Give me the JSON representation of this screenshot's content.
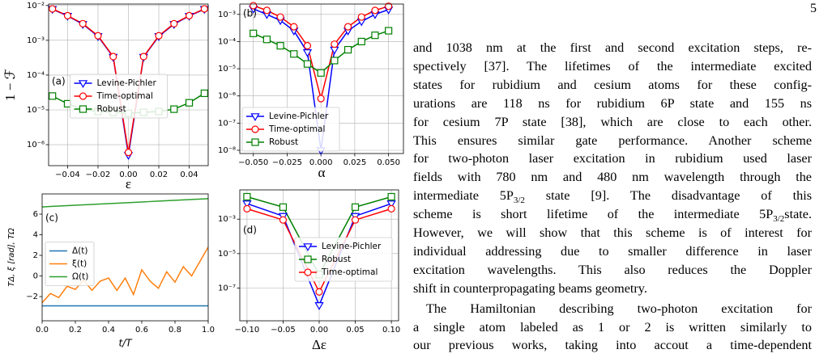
{
  "page_number": "5",
  "chart_data": [
    {
      "type": "line",
      "panel_label": "(a)",
      "xlabel": "ε",
      "ylabel": "1 − ℱ",
      "ylog": true,
      "grid": true,
      "legend": "center",
      "marker_size": 4,
      "x": [
        -0.05,
        -0.04,
        -0.03,
        -0.02,
        -0.01,
        0,
        0.01,
        0.02,
        0.03,
        0.04,
        0.05
      ],
      "xlim": [
        -0.0525,
        0.0525
      ],
      "xticks": [
        {
          "value": -0.04,
          "label": "−0.04"
        },
        {
          "value": -0.02,
          "label": "−0.02"
        },
        {
          "value": 0,
          "label": "0.00"
        },
        0.02,
        0.04
      ],
      "ylim": [
        2.5e-07,
        0.011
      ],
      "yticks": [
        {
          "value": 1e-06,
          "label": "10⁻⁶"
        },
        {
          "value": 1e-05,
          "label": "10⁻⁵"
        },
        {
          "value": 0.0001,
          "label": "10⁻⁴"
        },
        {
          "value": 0.001,
          "label": "10⁻³"
        },
        {
          "value": 0.01,
          "label": "10⁻²"
        }
      ],
      "series": [
        {
          "name": "Levine-Pichler",
          "color": "#0000ff",
          "marker": "v",
          "values": [
            0.0078,
            0.005,
            0.0029,
            0.0013,
            0.00033,
            5e-07,
            0.00033,
            0.0013,
            0.0029,
            0.005,
            0.0078
          ]
        },
        {
          "name": "Time-optimal",
          "color": "#ff0000",
          "marker": "o",
          "values": [
            0.008,
            0.0051,
            0.003,
            0.00135,
            0.00034,
            6e-07,
            0.00034,
            0.00135,
            0.003,
            0.0051,
            0.008
          ]
        },
        {
          "name": "Robust",
          "color": "#008000",
          "marker": "s",
          "values": [
            2.5e-05,
            1.5e-05,
            1.05e-05,
            9e-06,
            8.5e-06,
            8e-06,
            8.5e-06,
            9e-06,
            1.05e-05,
            1.6e-05,
            3e-05
          ]
        }
      ]
    },
    {
      "type": "line",
      "panel_label": "(b)",
      "xlabel": "α",
      "ylog": true,
      "grid": true,
      "legend": "lower left",
      "marker_size": 4,
      "x": [
        -0.05,
        -0.04,
        -0.03,
        -0.02,
        -0.01,
        0,
        0.01,
        0.02,
        0.03,
        0.04,
        0.05
      ],
      "xlim": [
        -0.06,
        0.061
      ],
      "xticks": [
        {
          "value": -0.05,
          "label": "−0.050"
        },
        {
          "value": -0.025,
          "label": "−0.025"
        },
        {
          "value": 0,
          "label": "0.000"
        },
        0.025,
        {
          "value": 0.05,
          "label": "0.050"
        }
      ],
      "ylim": [
        7.6e-09,
        0.0024
      ],
      "yticks": [
        {
          "value": 1e-08,
          "label": "10⁻⁸"
        },
        {
          "value": 1e-07,
          "label": "10⁻⁷"
        },
        {
          "value": 1e-06,
          "label": "10⁻⁶"
        },
        {
          "value": 1e-05,
          "label": "10⁻⁵"
        },
        {
          "value": 0.0001,
          "label": "10⁻⁴"
        },
        {
          "value": 0.001,
          "label": "10⁻³"
        }
      ],
      "series": [
        {
          "name": "Levine-Pichler",
          "color": "#0000ff",
          "marker": "v",
          "values": [
            0.0016,
            0.001,
            0.0006,
            0.00025,
            4e-05,
            1e-08,
            5e-05,
            0.00025,
            0.00055,
            0.001,
            0.0015
          ]
        },
        {
          "name": "Time-optimal",
          "color": "#ff0000",
          "marker": "o",
          "values": [
            0.0021,
            0.0014,
            0.0008,
            0.00035,
            7e-05,
            8e-07,
            8e-05,
            0.00035,
            0.0008,
            0.0014,
            0.002
          ]
        },
        {
          "name": "Robust",
          "color": "#008000",
          "marker": "s",
          "values": [
            0.0002,
            0.00012,
            7e-05,
            3.5e-05,
            1.5e-05,
            7e-06,
            2e-05,
            5e-05,
            0.0001,
            0.00017,
            0.00025
          ]
        }
      ]
    },
    {
      "type": "line",
      "panel_label": "(c)",
      "xlabel": "t/T",
      "ylabel": "TΔ, ξ [rad], TΩ",
      "ylog": false,
      "grid": false,
      "legend": "center left",
      "x": [
        0,
        0.05,
        0.1,
        0.15,
        0.2,
        0.25,
        0.3,
        0.35,
        0.4,
        0.45,
        0.5,
        0.55,
        0.6,
        0.65,
        0.7,
        0.75,
        0.8,
        0.85,
        0.9,
        0.95,
        1
      ],
      "xlim": [
        0,
        1
      ],
      "xticks": [
        {
          "value": 0,
          "label": "0.0"
        },
        0.2,
        0.4,
        0.6,
        0.8,
        {
          "value": 1,
          "label": "1.0"
        }
      ],
      "ylim": [
        -4.35,
        7.96
      ],
      "yticks": [
        {
          "value": -2,
          "label": "−2"
        },
        0,
        2,
        4,
        6
      ],
      "series": [
        {
          "name": "Δ(t)",
          "color": "#1f77b4",
          "values": [
            -2.9,
            -2.9,
            -2.9,
            -2.9,
            -2.9,
            -2.9,
            -2.9,
            -2.9,
            -2.9,
            -2.9,
            -2.9,
            -2.9,
            -2.9,
            -2.9,
            -2.9,
            -2.9,
            -2.9,
            -2.9,
            -2.9,
            -2.9,
            -2.9
          ]
        },
        {
          "name": "ξ(t)",
          "color": "#ff7f0e",
          "values": [
            -2.6,
            -1.7,
            -2.1,
            -1.0,
            -1.3,
            -0.4,
            -1.4,
            -0.5,
            -0.2,
            -1.4,
            -0.2,
            -1.8,
            0.6,
            -0.5,
            -1.2,
            0.4,
            -0.6,
            0.9,
            0.0,
            1.4,
            2.8
          ]
        },
        {
          "name": "Ω(t)",
          "color": "#2ca02c",
          "values": [
            6.7,
            6.74,
            6.78,
            6.82,
            6.86,
            6.9,
            6.94,
            6.98,
            7.02,
            7.06,
            7.1,
            7.14,
            7.18,
            7.22,
            7.26,
            7.3,
            7.34,
            7.38,
            7.42,
            7.46,
            7.5
          ]
        }
      ]
    },
    {
      "type": "line",
      "panel_label": "(d)",
      "xlabel": "Δε",
      "ylog": true,
      "grid": true,
      "legend": "center right",
      "marker_size": 4,
      "x": [
        -0.1,
        -0.05,
        0,
        0.05,
        0.1
      ],
      "xlim": [
        -0.11,
        0.11
      ],
      "xticks": [
        {
          "value": -0.1,
          "label": "−0.10"
        },
        {
          "value": -0.05,
          "label": "−0.05"
        },
        {
          "value": 0,
          "label": "0.00"
        },
        0.05,
        {
          "value": 0.1,
          "label": "0.10"
        }
      ],
      "ylim": [
        1.26e-09,
        0.05
      ],
      "yticks": [
        {
          "value": 1e-07,
          "label": "10⁻⁷"
        },
        {
          "value": 1e-05,
          "label": "10⁻⁵"
        },
        {
          "value": 0.001,
          "label": "10⁻³"
        }
      ],
      "series": [
        {
          "name": "Levine-Pichler",
          "color": "#0000ff",
          "marker": "v",
          "values": [
            0.008,
            0.0015,
            1e-08,
            0.0015,
            0.008
          ]
        },
        {
          "name": "Robust",
          "color": "#008000",
          "marker": "s",
          "values": [
            0.02,
            0.005,
            6e-07,
            0.005,
            0.02
          ]
        },
        {
          "name": "Time-optimal",
          "color": "#ff0000",
          "marker": "o",
          "values": [
            0.004,
            0.0009,
            6e-08,
            0.0009,
            0.004
          ]
        }
      ]
    }
  ],
  "text": {
    "lines": [
      [
        "and 1038 nm at the first and second excitation steps, re-"
      ],
      [
        "spectively [37]. The lifetimes of the intermediate excited"
      ],
      [
        "states for rubidium and cesium atoms for these config-"
      ],
      [
        "urations are 118 ns for rubidium 6P state and 155 ns"
      ],
      [
        "for cesium 7P state [38], which are close to each other."
      ],
      [
        "This ensures similar gate performance. Another scheme"
      ],
      [
        "for two-photon laser excitation in rubidium used laser"
      ],
      [
        "fields with 780 nm and 480 nm wavelength through the"
      ],
      [
        "intermediate 5P",
        "3/2",
        " state [9]. The disadvantage of this"
      ],
      [
        "scheme is short lifetime of the intermediate 5P",
        "3/2",
        "state."
      ],
      [
        "However, we will show that this scheme is of interest for"
      ],
      [
        "individual addressing due to smaller difference in laser"
      ],
      [
        "excitation wavelengths. This also reduces the Doppler"
      ],
      [
        "shift in counterpropagating beams geometry."
      ],
      [
        "The Hamiltonian describing two-photon excitation for"
      ],
      [
        "a single atom labeled as 1 or 2 is written similarly to"
      ],
      [
        "our previous works, taking into accout a time-dependent"
      ]
    ]
  }
}
